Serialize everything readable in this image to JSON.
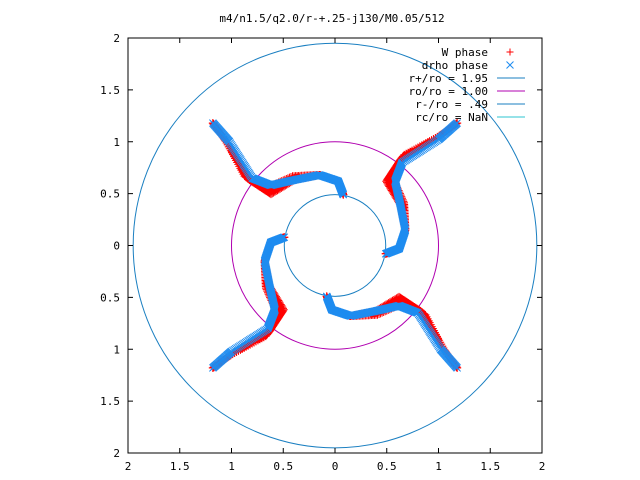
{
  "chart_data": {
    "type": "scatter",
    "title": "m4/n1.5/q2.0/r-+.25-j130/M0.05/512",
    "xlabel": "",
    "ylabel": "",
    "xlim": [
      -2,
      2
    ],
    "ylim": [
      -2,
      2
    ],
    "grid": false,
    "legend_position": "top-right",
    "x_ticks": [
      -2,
      -1.5,
      -1,
      -0.5,
      0,
      0.5,
      1,
      1.5,
      2
    ],
    "y_ticks": [
      -2,
      -1.5,
      -1,
      -0.5,
      0,
      0.5,
      1,
      1.5,
      2
    ],
    "x_tick_labels": [
      "2",
      "1.5",
      "1",
      "0.5",
      "0",
      "0.5",
      "1",
      "1.5",
      "2"
    ],
    "y_tick_labels": [
      "2",
      "1.5",
      "1",
      "0.5",
      "0",
      "0.5",
      "1",
      "1.5",
      "2"
    ],
    "series": [
      {
        "name": "W phase",
        "marker": "plus",
        "color": "#ff0000",
        "arms": 4,
        "path": [
          [
            0.08,
            0.49
          ],
          [
            0.03,
            0.62
          ],
          [
            -0.15,
            0.68
          ],
          [
            -0.4,
            0.65
          ],
          [
            -0.65,
            0.52
          ],
          [
            -0.85,
            0.65
          ],
          [
            -1.05,
            1.0
          ],
          [
            -1.18,
            1.18
          ]
        ],
        "thickness": [
          0,
          0,
          0,
          0.04,
          0.08,
          0.06,
          0.02,
          0
        ]
      },
      {
        "name": "drho phase",
        "marker": "x",
        "color": "#1e8cf0",
        "arms": 4,
        "path": [
          [
            0.08,
            0.49
          ],
          [
            0.03,
            0.62
          ],
          [
            -0.15,
            0.68
          ],
          [
            -0.4,
            0.63
          ],
          [
            -0.62,
            0.58
          ],
          [
            -0.8,
            0.65
          ],
          [
            -1.02,
            1.0
          ],
          [
            -1.18,
            1.18
          ]
        ]
      },
      {
        "name": "r+/ro = 1.95",
        "type": "circle",
        "radius": 1.95,
        "color": "#1a7fc1"
      },
      {
        "name": "ro/ro = 1.00",
        "type": "circle",
        "radius": 1.0,
        "color": "#b000b0"
      },
      {
        "name": "r-/ro = .49",
        "type": "circle",
        "radius": 0.49,
        "color": "#1a7fc1"
      },
      {
        "name": "rc/ro = NaN",
        "type": "circle",
        "radius": null,
        "color": "#2ec4d2"
      }
    ]
  }
}
